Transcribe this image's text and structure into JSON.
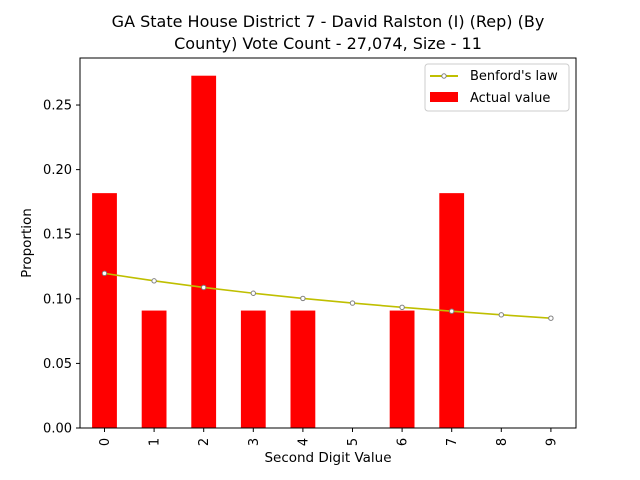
{
  "chart_data": {
    "type": "bar",
    "title_lines": [
      "GA State House District 7 - David Ralston (I) (Rep) (By",
      "County) Vote Count - 27,074, Size - 11"
    ],
    "xlabel": "Second Digit Value",
    "ylabel": "Proportion",
    "categories": [
      "0",
      "1",
      "2",
      "3",
      "4",
      "5",
      "6",
      "7",
      "8",
      "9"
    ],
    "ylim": [
      0,
      0.2864
    ],
    "yticks": [
      0.0,
      0.05,
      0.1,
      0.15,
      0.2,
      0.25
    ],
    "ytick_labels": [
      "0.00",
      "0.05",
      "0.10",
      "0.15",
      "0.20",
      "0.25"
    ],
    "legend_position": "top-right",
    "series": [
      {
        "name": "Actual value",
        "kind": "bar",
        "color": "#ff0000",
        "values": [
          0.1818,
          0.0909,
          0.2727,
          0.0909,
          0.0909,
          0.0,
          0.0909,
          0.1818,
          0.0,
          0.0
        ]
      },
      {
        "name": "Benford's law",
        "kind": "line",
        "color": "#bfbf00",
        "values": [
          0.1197,
          0.1139,
          0.1088,
          0.1043,
          0.1003,
          0.0967,
          0.0934,
          0.0904,
          0.0876,
          0.085
        ]
      }
    ]
  }
}
